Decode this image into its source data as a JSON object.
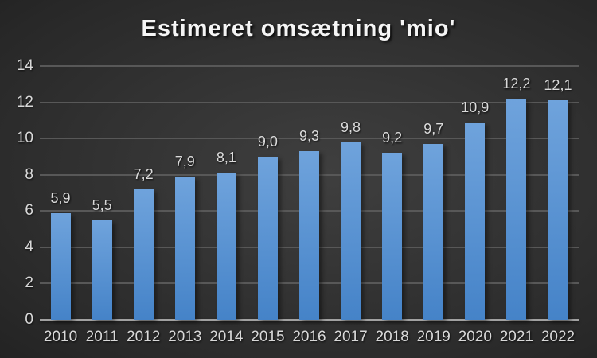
{
  "title": "Estimeret omsætning 'mio'",
  "colors": {
    "background_center": "#3f3f3f",
    "background_edge": "#232323",
    "bar_top": "#6fa3dc",
    "bar_bottom": "#4583c8",
    "gridline": "#585858",
    "axis_line": "#a2a2a2",
    "tick_label": "#d9d9d9",
    "value_label": "#dbdbdb",
    "title_color": "#f5f5f5"
  },
  "chart_data": {
    "type": "bar",
    "title": "Estimeret omsætning 'mio'",
    "categories": [
      "2010",
      "2011",
      "2012",
      "2013",
      "2014",
      "2015",
      "2016",
      "2017",
      "2018",
      "2019",
      "2020",
      "2021",
      "2022"
    ],
    "values": [
      5.9,
      5.5,
      7.2,
      7.9,
      8.1,
      9.0,
      9.3,
      9.8,
      9.2,
      9.7,
      10.9,
      12.2,
      12.1
    ],
    "value_labels": [
      "5,9",
      "5,5",
      "7,2",
      "7,9",
      "8,1",
      "9,0",
      "9,3",
      "9,8",
      "9,2",
      "9,7",
      "10,9",
      "12,2",
      "12,1"
    ],
    "xlabel": "",
    "ylabel": "",
    "ylim": [
      0,
      14
    ],
    "ytick_step": 2,
    "ytick_labels": [
      "0",
      "2",
      "4",
      "6",
      "8",
      "10",
      "12",
      "14"
    ],
    "grid": true,
    "legend": false,
    "decimal_separator": ","
  }
}
